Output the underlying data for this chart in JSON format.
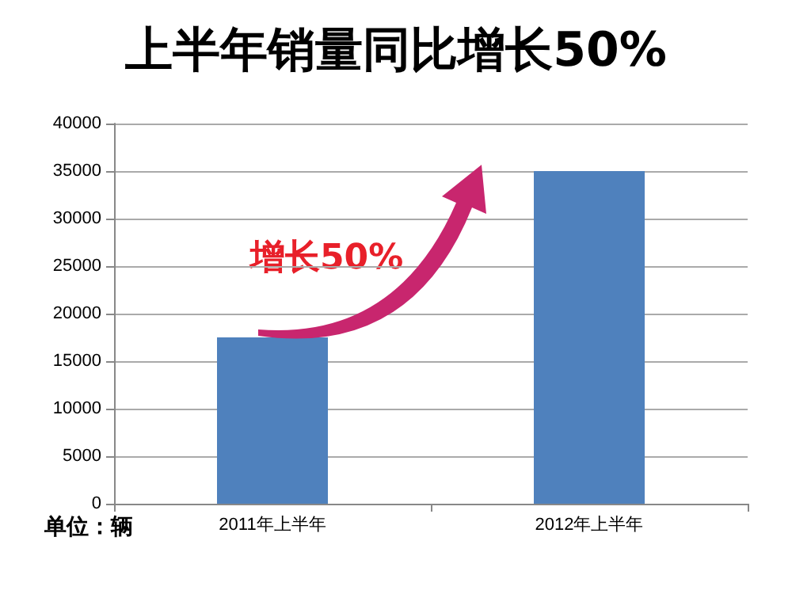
{
  "chart_data": {
    "type": "bar",
    "title": "上半年销量同比增长50%",
    "categories": [
      "2011年上半年",
      "2012年上半年"
    ],
    "values": [
      17500,
      35000
    ],
    "color": "#4f81bd",
    "ylim": [
      0,
      40000
    ],
    "yticks": [
      0,
      5000,
      10000,
      15000,
      20000,
      25000,
      30000,
      35000,
      40000
    ],
    "grid": "y",
    "annotations": [
      "单位：辆",
      "增长50%"
    ]
  }
}
